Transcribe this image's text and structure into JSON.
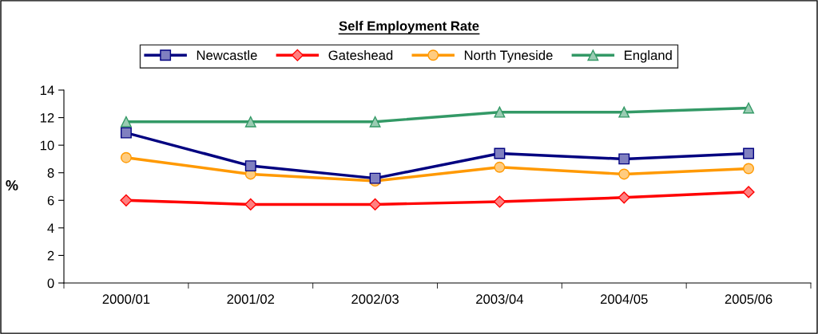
{
  "chart_data": {
    "type": "line",
    "title": "Self Employment Rate",
    "ylabel": "%",
    "categories": [
      "2000/01",
      "2001/02",
      "2002/03",
      "2003/04",
      "2004/05",
      "2005/06"
    ],
    "series": [
      {
        "name": "Newcastle",
        "color": "#000080",
        "marker": "square",
        "values": [
          10.9,
          8.5,
          7.6,
          9.4,
          9.0,
          9.4
        ]
      },
      {
        "name": "Gateshead",
        "color": "#ff0000",
        "marker": "diamond",
        "values": [
          6.0,
          5.7,
          5.7,
          5.9,
          6.2,
          6.6
        ]
      },
      {
        "name": "North Tyneside",
        "color": "#ff9900",
        "marker": "circle",
        "values": [
          9.1,
          7.9,
          7.4,
          8.4,
          7.9,
          8.3
        ]
      },
      {
        "name": "England",
        "color": "#339966",
        "marker": "triangle",
        "values": [
          11.7,
          11.7,
          11.7,
          12.4,
          12.4,
          12.7
        ]
      }
    ],
    "ylim": [
      0,
      14
    ],
    "yticks": [
      0,
      2,
      4,
      6,
      8,
      10,
      12,
      14
    ],
    "grid": false,
    "legend": "top"
  }
}
